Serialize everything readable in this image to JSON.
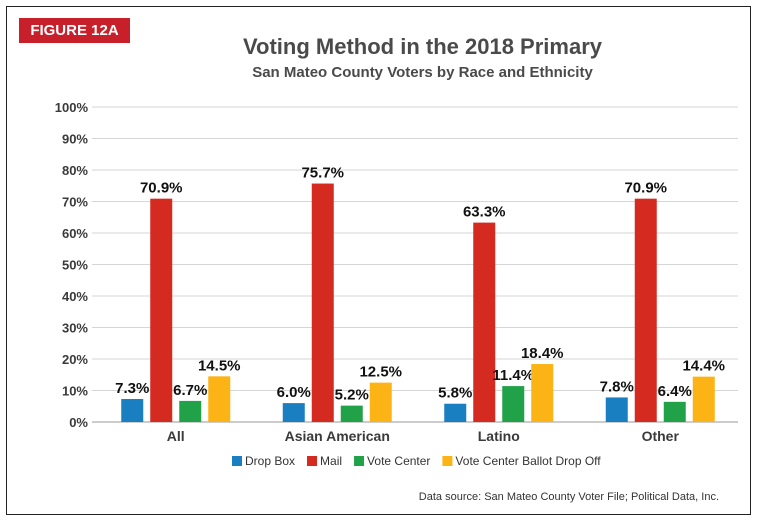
{
  "figure_label": "FIGURE 12A",
  "source": "Data source: San Mateo County Voter File; Political Data, Inc.",
  "chart_data": {
    "type": "bar",
    "title": "Voting Method  in the 2018 Primary",
    "subtitle": "San Mateo County Voters by Race and Ethnicity",
    "categories": [
      "All",
      "Asian American",
      "Latino",
      "Other"
    ],
    "yticks": [
      "0%",
      "10%",
      "20%",
      "30%",
      "40%",
      "50%",
      "60%",
      "70%",
      "80%",
      "90%",
      "100%"
    ],
    "ylim": [
      0,
      100
    ],
    "grid": true,
    "legend_position": "bottom",
    "series": [
      {
        "name": "Drop Box",
        "color": "#1a7fc1",
        "values": [
          7.3,
          6.0,
          5.8,
          7.8
        ],
        "labels": [
          "7.3%",
          "6.0%",
          "5.8%",
          "7.8%"
        ]
      },
      {
        "name": "Mail",
        "color": "#d42a20",
        "values": [
          70.9,
          75.7,
          63.3,
          70.9
        ],
        "labels": [
          "70.9%",
          "75.7%",
          "63.3%",
          "70.9%"
        ]
      },
      {
        "name": "Vote Center",
        "color": "#21a249",
        "values": [
          6.7,
          5.2,
          11.4,
          6.4
        ],
        "labels": [
          "6.7%",
          "5.2%",
          "11.4%",
          "6.4%"
        ]
      },
      {
        "name": "Vote Center Ballot Drop Off",
        "color": "#fbb316",
        "values": [
          14.5,
          12.5,
          18.4,
          14.4
        ],
        "labels": [
          "14.5%",
          "12.5%",
          "18.4%",
          "14.4%"
        ]
      }
    ]
  }
}
